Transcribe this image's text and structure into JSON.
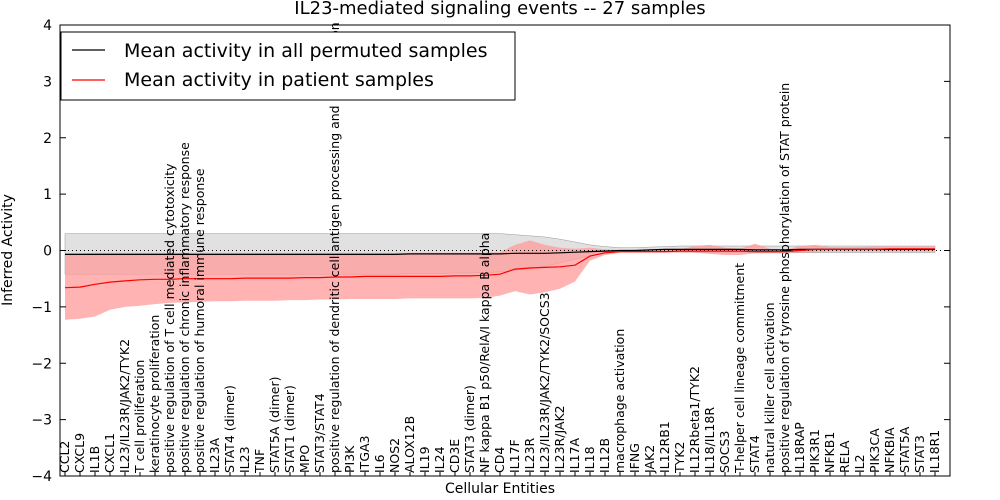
{
  "chart_data": {
    "type": "line",
    "title": "IL23-mediated signaling events -- 27 samples",
    "xlabel": "Cellular Entities",
    "ylabel": "Inferred Activity",
    "ylim": [
      -4,
      4
    ],
    "yticks": [
      -4,
      -3,
      -2,
      -1,
      0,
      1,
      2,
      3,
      4
    ],
    "grid": false,
    "legend_position": "top-left",
    "zero_line": 0,
    "categories": [
      "CCL2",
      "CXCL9",
      "IL1B",
      "CXCL1",
      "IL23/IL23R/JAK2/TYK2",
      "T cell proliferation",
      "keratinocyte proliferation",
      "positive regulation of T cell mediated cytotoxicity",
      "positive regulation of chronic inflammatory response",
      "positive regulation of humoral immune response",
      "IL23A",
      "STAT4 (dimer)",
      "IL23",
      "TNF",
      "STAT5A (dimer)",
      "STAT1 (dimer)",
      "MPO",
      "STAT3/STAT4",
      "positive regulation of dendritic cell antigen processing and presentation",
      "PI3K",
      "ITGA3",
      "IL6",
      "NOS2",
      "ALOX12B",
      "IL19",
      "IL24",
      "CD3E",
      "STAT3 (dimer)",
      "NF kappa B1 p50/RelA/I kappa B alpha",
      "CD4",
      "IL17F",
      "IL23R",
      "IL23/IL23R/JAK2/TYK2/SOCS3",
      "IL23R/JAK2",
      "IL17A",
      "IL18",
      "IL12B",
      "macrophage activation",
      "IFNG",
      "JAK2",
      "IL12RB1",
      "TYK2",
      "IL12Rbeta1/TYK2",
      "IL18/IL18R",
      "SOCS3",
      "T-helper cell lineage commitment",
      "STAT4",
      "natural killer cell activation",
      "positive regulation of tyrosine phosphorylation of STAT protein",
      "IL18RAP",
      "PIK3R1",
      "NFKB1",
      "RELA",
      "IL2",
      "PIK3CA",
      "NFKBIA",
      "STAT5A",
      "STAT3",
      "IL18R1"
    ],
    "series": [
      {
        "name": "Mean activity in all permuted samples",
        "color": "#000000",
        "values": [
          -0.07,
          -0.07,
          -0.07,
          -0.07,
          -0.07,
          -0.07,
          -0.07,
          -0.07,
          -0.07,
          -0.07,
          -0.07,
          -0.07,
          -0.07,
          -0.07,
          -0.07,
          -0.07,
          -0.07,
          -0.07,
          -0.07,
          -0.07,
          -0.07,
          -0.07,
          -0.07,
          -0.06,
          -0.06,
          -0.06,
          -0.06,
          -0.06,
          -0.06,
          -0.06,
          -0.05,
          -0.05,
          -0.05,
          -0.04,
          -0.03,
          -0.02,
          -0.01,
          0.0,
          0.0,
          0.01,
          0.02,
          0.02,
          0.02,
          0.02,
          0.02,
          0.02,
          0.01,
          0.01,
          0.01,
          0.02,
          0.02,
          0.02,
          0.02,
          0.02,
          0.02,
          0.02,
          0.02,
          0.02,
          0.02
        ],
        "lower": [
          -0.42,
          -0.42,
          -0.42,
          -0.42,
          -0.42,
          -0.42,
          -0.42,
          -0.42,
          -0.42,
          -0.42,
          -0.42,
          -0.42,
          -0.42,
          -0.42,
          -0.42,
          -0.42,
          -0.42,
          -0.42,
          -0.42,
          -0.42,
          -0.42,
          -0.42,
          -0.42,
          -0.41,
          -0.41,
          -0.41,
          -0.4,
          -0.4,
          -0.39,
          -0.38,
          -0.35,
          -0.32,
          -0.28,
          -0.22,
          -0.15,
          -0.09,
          -0.05,
          -0.02,
          -0.02,
          -0.02,
          -0.02,
          -0.02,
          -0.03,
          -0.04,
          -0.04,
          -0.04,
          -0.04,
          -0.04,
          -0.04,
          -0.04,
          -0.04,
          -0.04,
          -0.04,
          -0.04,
          -0.04,
          -0.04,
          -0.04,
          -0.04,
          -0.04
        ],
        "upper": [
          0.3,
          0.3,
          0.3,
          0.3,
          0.3,
          0.3,
          0.3,
          0.3,
          0.3,
          0.3,
          0.3,
          0.3,
          0.3,
          0.3,
          0.3,
          0.3,
          0.3,
          0.3,
          0.3,
          0.3,
          0.3,
          0.3,
          0.3,
          0.3,
          0.3,
          0.3,
          0.3,
          0.3,
          0.3,
          0.3,
          0.28,
          0.26,
          0.24,
          0.2,
          0.15,
          0.1,
          0.07,
          0.05,
          0.05,
          0.06,
          0.07,
          0.08,
          0.08,
          0.08,
          0.08,
          0.08,
          0.08,
          0.08,
          0.08,
          0.08,
          0.08,
          0.08,
          0.08,
          0.08,
          0.08,
          0.08,
          0.08,
          0.08,
          0.08
        ]
      },
      {
        "name": "Mean activity in patient samples",
        "color": "#ff0000",
        "band_color": "#ff9999",
        "values": [
          -0.66,
          -0.65,
          -0.6,
          -0.56,
          -0.54,
          -0.52,
          -0.51,
          -0.51,
          -0.5,
          -0.5,
          -0.5,
          -0.5,
          -0.49,
          -0.49,
          -0.49,
          -0.49,
          -0.48,
          -0.48,
          -0.47,
          -0.47,
          -0.46,
          -0.46,
          -0.46,
          -0.46,
          -0.46,
          -0.46,
          -0.45,
          -0.45,
          -0.44,
          -0.42,
          -0.33,
          -0.31,
          -0.3,
          -0.29,
          -0.26,
          -0.1,
          -0.04,
          -0.02,
          -0.02,
          -0.02,
          -0.02,
          -0.01,
          -0.01,
          -0.01,
          -0.01,
          -0.01,
          -0.02,
          -0.02,
          -0.02,
          0.0,
          0.02,
          0.02,
          0.02,
          0.02,
          0.02,
          0.03,
          0.03,
          0.03,
          0.03
        ],
        "lower": [
          -1.23,
          -1.21,
          -1.17,
          -1.05,
          -1.0,
          -0.98,
          -0.95,
          -0.93,
          -0.92,
          -0.91,
          -0.9,
          -0.9,
          -0.89,
          -0.89,
          -0.89,
          -0.88,
          -0.88,
          -0.87,
          -0.87,
          -0.86,
          -0.86,
          -0.86,
          -0.86,
          -0.85,
          -0.85,
          -0.85,
          -0.85,
          -0.85,
          -0.84,
          -0.8,
          -0.72,
          -0.78,
          -0.74,
          -0.68,
          -0.55,
          -0.18,
          -0.08,
          -0.04,
          -0.04,
          -0.04,
          -0.04,
          -0.04,
          -0.04,
          -0.06,
          -0.08,
          -0.08,
          -0.05,
          -0.05,
          -0.05,
          -0.03,
          -0.03,
          -0.02,
          -0.02,
          -0.02,
          -0.02,
          -0.02,
          -0.02,
          -0.02,
          -0.02
        ],
        "upper": [
          -0.05,
          -0.05,
          -0.04,
          -0.04,
          -0.04,
          -0.04,
          -0.04,
          -0.04,
          -0.04,
          -0.04,
          -0.04,
          -0.04,
          -0.04,
          -0.04,
          -0.04,
          -0.04,
          -0.04,
          -0.04,
          -0.04,
          -0.04,
          -0.04,
          -0.04,
          -0.04,
          -0.04,
          -0.04,
          -0.04,
          -0.04,
          -0.04,
          -0.04,
          -0.03,
          0.1,
          0.18,
          0.1,
          0.05,
          0.03,
          0.05,
          0.02,
          0.01,
          0.01,
          0.01,
          0.01,
          0.02,
          0.08,
          0.1,
          0.05,
          0.03,
          0.12,
          0.03,
          0.01,
          0.08,
          0.1,
          0.06,
          0.06,
          0.06,
          0.07,
          0.07,
          0.07,
          0.07,
          0.07
        ]
      }
    ]
  }
}
